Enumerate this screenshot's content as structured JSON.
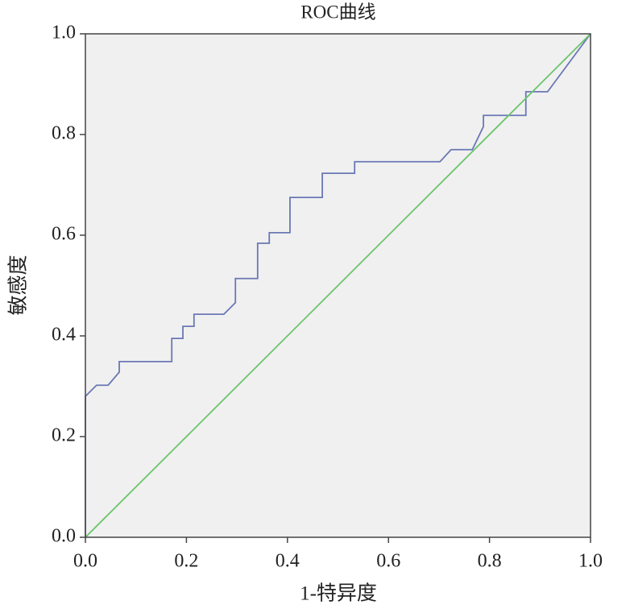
{
  "chart_data": {
    "type": "line",
    "title": "ROC曲线",
    "xlabel": "1-特异度",
    "ylabel": "敏感度",
    "xlim": [
      0,
      1
    ],
    "ylim": [
      0,
      1
    ],
    "xticks": [
      {
        "value": 0,
        "label": "0.0"
      },
      0.2,
      0.4,
      0.6,
      0.8,
      {
        "value": 1,
        "label": "1.0"
      }
    ],
    "yticks": [
      {
        "value": 0,
        "label": "0.0"
      },
      0.2,
      0.4,
      0.6,
      0.8,
      {
        "value": 1,
        "label": "1.0"
      }
    ],
    "grid": false,
    "series": [
      {
        "color": "#6a78b5",
        "x": [
          0,
          0,
          0.022,
          0.045,
          0.067,
          0.067,
          0.171,
          0.171,
          0.193,
          0.193,
          0.215,
          0.215,
          0.274,
          0.297,
          0.297,
          0.341,
          0.341,
          0.364,
          0.364,
          0.405,
          0.405,
          0.469,
          0.469,
          0.533,
          0.533,
          0.702,
          0.724,
          0.766,
          0.788,
          0.788,
          0.872,
          0.872,
          0.915,
          1
        ],
        "values": [
          0,
          0.28,
          0.302,
          0.302,
          0.328,
          0.349,
          0.349,
          0.395,
          0.395,
          0.419,
          0.419,
          0.443,
          0.443,
          0.466,
          0.514,
          0.514,
          0.584,
          0.584,
          0.605,
          0.605,
          0.675,
          0.675,
          0.723,
          0.723,
          0.746,
          0.746,
          0.77,
          0.77,
          0.816,
          0.838,
          0.838,
          0.885,
          0.885,
          1
        ]
      },
      {
        "color": "#6cc46c",
        "x": [
          0,
          1
        ],
        "values": [
          0,
          1
        ]
      }
    ]
  }
}
